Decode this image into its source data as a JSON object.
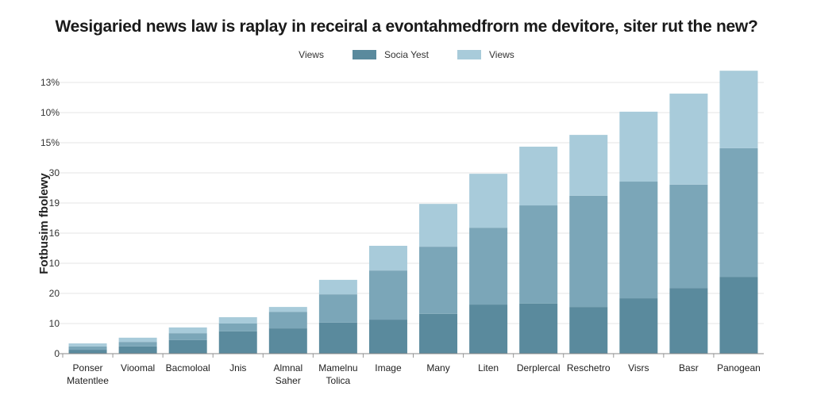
{
  "chart_data": {
    "type": "bar",
    "stacked": true,
    "title": "Wesigaried news law is raplay in receiral a evontahmedfrorn me devitore, siter rut the new?",
    "ylabel": "Fotbusim fbolewy",
    "xlabel": "",
    "legend": {
      "placement": "top",
      "leading_label": "Views",
      "entries": [
        "Socia Yest",
        "Views"
      ]
    },
    "grid": true,
    "ytick_labels": [
      "0",
      "10",
      "20",
      "10",
      "16",
      "19",
      "30",
      "15%",
      "10%",
      "13%"
    ],
    "ylim": [
      0,
      9.5
    ],
    "categories": [
      [
        "Ponser",
        "Matentlee"
      ],
      [
        "Vioomal"
      ],
      [
        "Bacmoloal"
      ],
      [
        "Jnis"
      ],
      [
        "Almnal",
        "Saher"
      ],
      [
        "Mamelnu",
        "Tolica"
      ],
      [
        "Image"
      ],
      [
        "Many"
      ],
      [
        "Liten"
      ],
      [
        "Derplercal"
      ],
      [
        "Reschetro"
      ],
      [
        "Visrs"
      ],
      [
        "Basr"
      ],
      [
        "Panogean"
      ]
    ],
    "series": [
      {
        "name": "Socia Yest",
        "color": "#5a8a9d",
        "values": [
          0.13,
          0.24,
          0.45,
          0.74,
          0.84,
          1.03,
          1.13,
          1.32,
          1.63,
          1.66,
          1.55,
          1.84,
          2.18,
          2.55
        ]
      },
      {
        "color": "#7ba6b8",
        "values": [
          0.11,
          0.15,
          0.23,
          0.26,
          0.55,
          0.94,
          1.63,
          2.23,
          2.55,
          3.26,
          3.69,
          3.87,
          3.43,
          4.27
        ]
      },
      {
        "name": "Views",
        "color": "#a8cbda",
        "values": [
          0.1,
          0.14,
          0.19,
          0.21,
          0.16,
          0.48,
          0.82,
          1.42,
          1.79,
          1.95,
          2.02,
          2.32,
          3.02,
          2.57
        ]
      }
    ]
  }
}
